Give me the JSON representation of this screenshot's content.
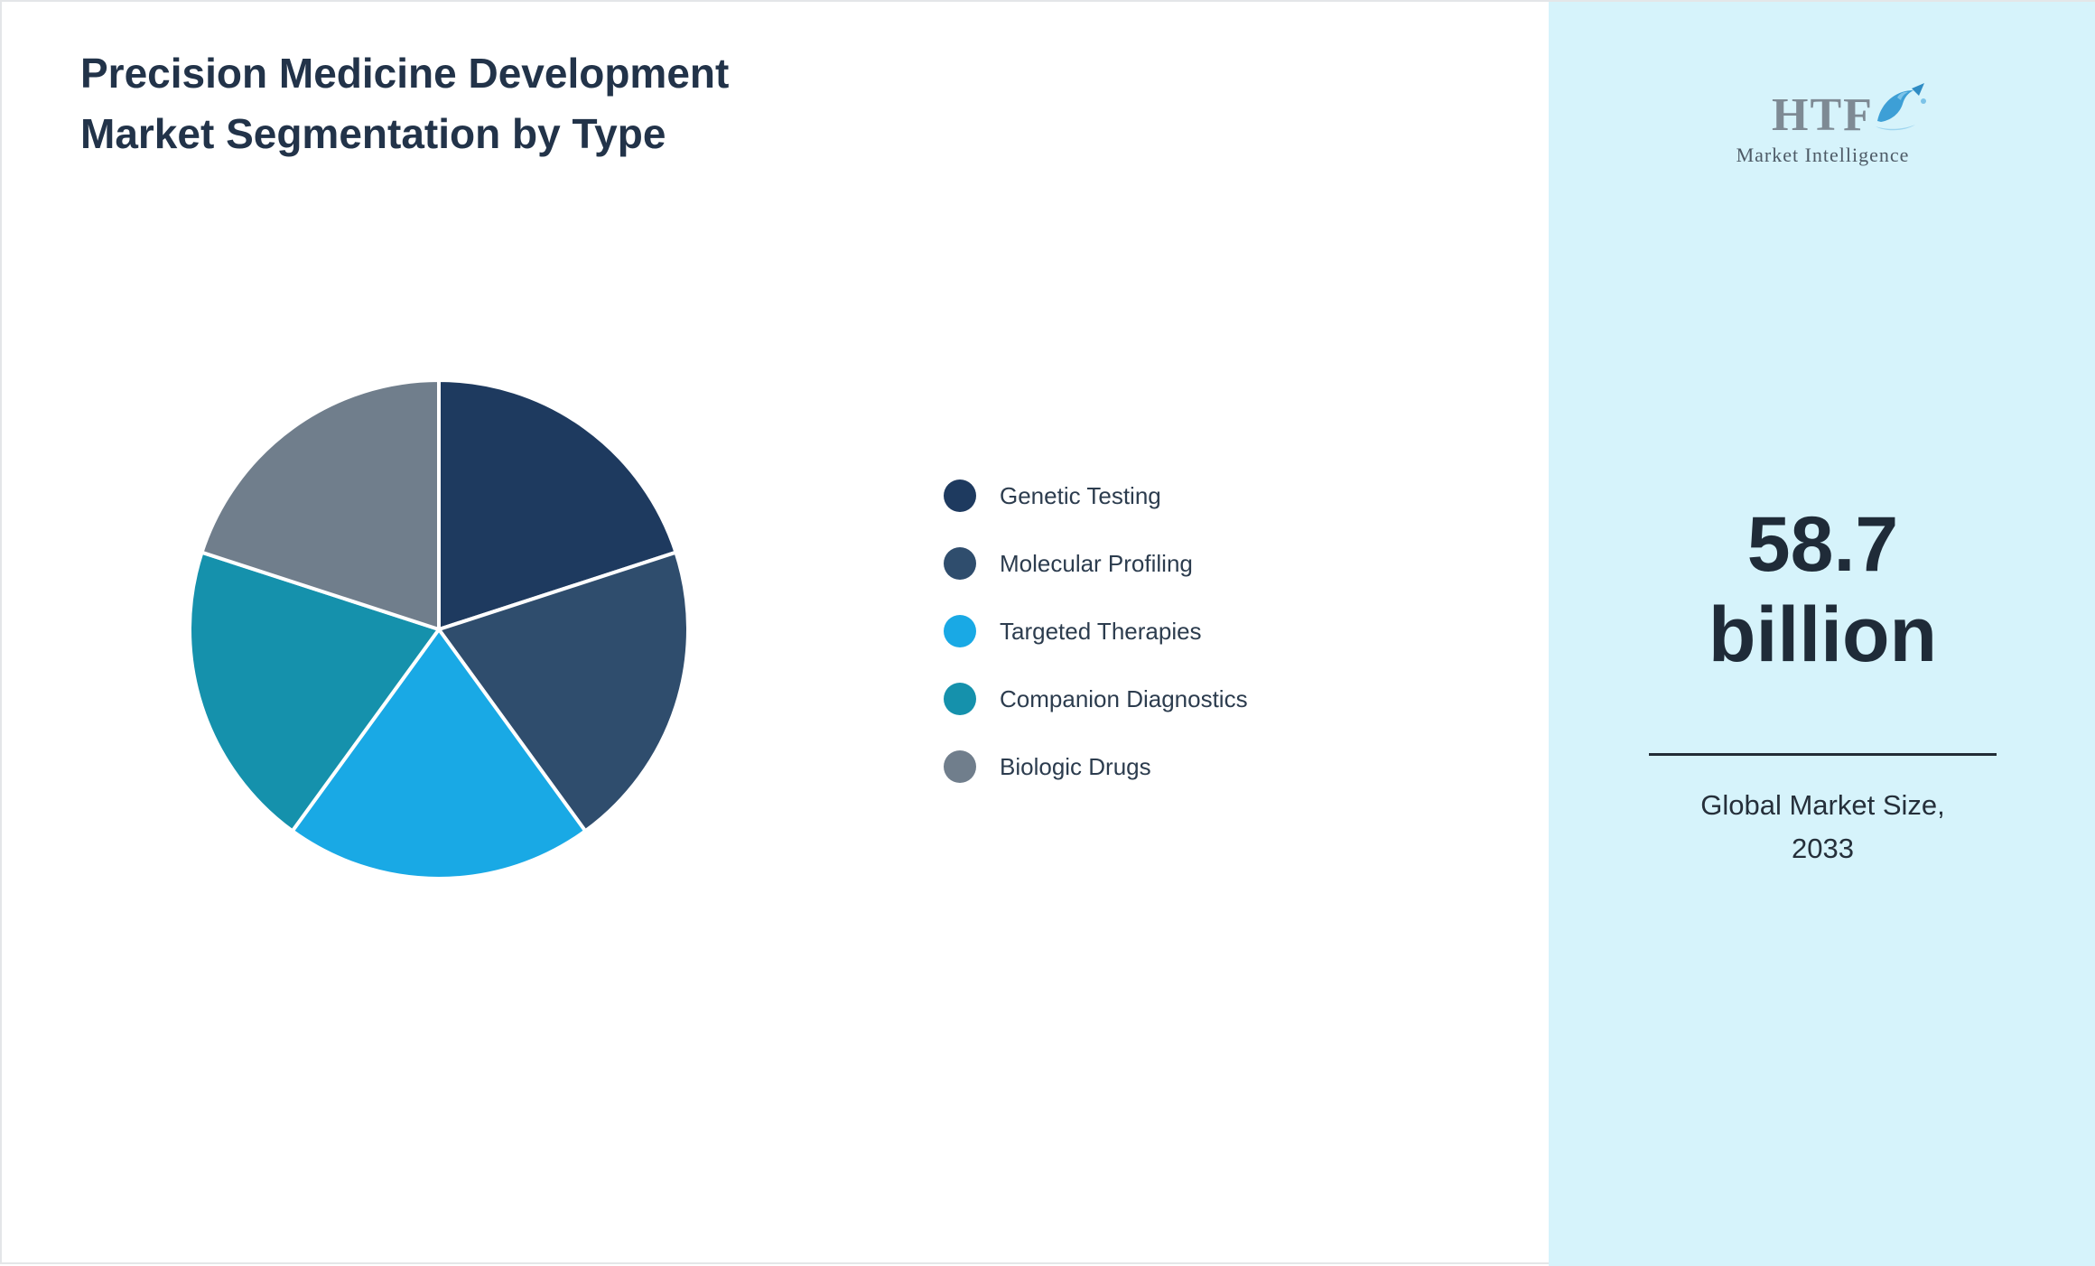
{
  "header": {
    "title_line1": "Precision Medicine Development",
    "title_line2": "Market Segmentation by Type"
  },
  "chart_data": {
    "type": "pie",
    "title": "Precision Medicine Development Market Segmentation by Type",
    "start_angle_deg": 0,
    "direction": "clockwise",
    "legend_position": "right",
    "segments": [
      {
        "label": "Genetic Testing",
        "value": 20,
        "color": "#1e3a5f"
      },
      {
        "label": "Molecular Profiling",
        "value": 20,
        "color": "#2f4d6d"
      },
      {
        "label": "Targeted Therapies",
        "value": 20,
        "color": "#19a9e5"
      },
      {
        "label": "Companion Diagnostics",
        "value": 20,
        "color": "#1591ac"
      },
      {
        "label": "Biologic Drugs",
        "value": 20,
        "color": "#707e8c"
      }
    ]
  },
  "panel": {
    "logo_text": "HTF",
    "logo_subtitle": "Market Intelligence",
    "value": "58.7",
    "unit": "billion",
    "caption_line1": "Global Market Size,",
    "caption_line2": "2033",
    "bg_color": "#d6f3fb",
    "accent_color": "#3d9fd6"
  }
}
